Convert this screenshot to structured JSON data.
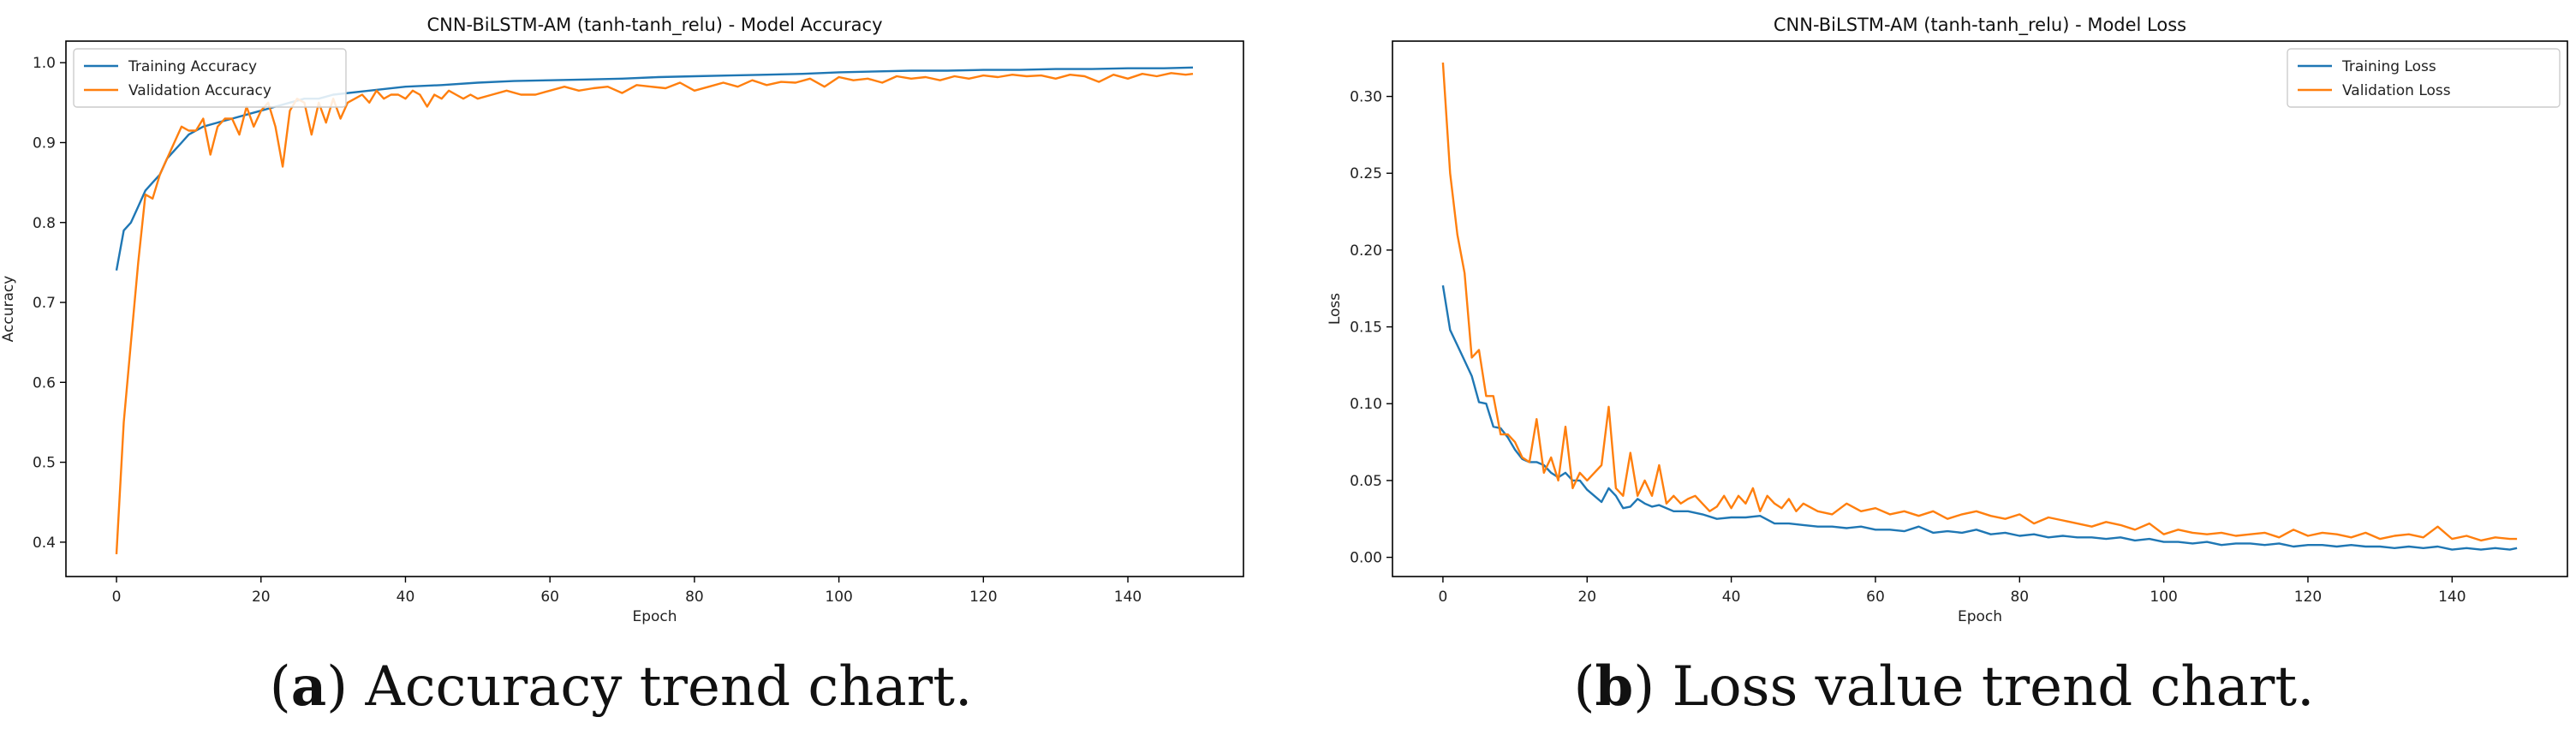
{
  "figure": {
    "panels": [
      {
        "letter": "a",
        "caption": "Accuracy trend chart."
      },
      {
        "letter": "b",
        "caption": "Loss value trend chart."
      }
    ]
  },
  "colors": {
    "training": "#1f77b4",
    "validation": "#ff7f0e"
  },
  "chart_data": [
    {
      "type": "line",
      "title": "CNN-BiLSTM-AM (tanh-tanh_relu) - Model Accuracy",
      "xlabel": "Epoch",
      "ylabel": "Accuracy",
      "xlim": [
        -7,
        156
      ],
      "ylim": [
        0.357,
        1.027
      ],
      "xticks": [
        0,
        20,
        40,
        60,
        80,
        100,
        120,
        140
      ],
      "xtick_labels": [
        "0",
        "20",
        "40",
        "60",
        "80",
        "100",
        "120",
        "140"
      ],
      "yticks": [
        0.4,
        0.5,
        0.6,
        0.7,
        0.8,
        0.9,
        1.0
      ],
      "ytick_labels": [
        "0.4",
        "0.5",
        "0.6",
        "0.7",
        "0.8",
        "0.9",
        "1.0"
      ],
      "grid": false,
      "legend_position": "upper left",
      "series": [
        {
          "name": "Training Accuracy",
          "color": "#1f77b4",
          "x": [
            0,
            1,
            2,
            3,
            4,
            5,
            6,
            7,
            8,
            9,
            10,
            12,
            14,
            16,
            18,
            20,
            22,
            24,
            26,
            28,
            30,
            35,
            40,
            45,
            50,
            55,
            60,
            65,
            70,
            75,
            80,
            85,
            90,
            95,
            100,
            105,
            110,
            115,
            120,
            125,
            130,
            135,
            140,
            145,
            149
          ],
          "y": [
            0.74,
            0.79,
            0.8,
            0.82,
            0.84,
            0.85,
            0.86,
            0.88,
            0.89,
            0.9,
            0.91,
            0.92,
            0.925,
            0.93,
            0.935,
            0.94,
            0.945,
            0.95,
            0.955,
            0.955,
            0.96,
            0.965,
            0.97,
            0.972,
            0.975,
            0.977,
            0.978,
            0.979,
            0.98,
            0.982,
            0.983,
            0.984,
            0.985,
            0.986,
            0.988,
            0.989,
            0.99,
            0.99,
            0.991,
            0.991,
            0.992,
            0.992,
            0.993,
            0.993,
            0.994
          ]
        },
        {
          "name": "Validation Accuracy",
          "color": "#ff7f0e",
          "x": [
            0,
            1,
            2,
            3,
            4,
            5,
            6,
            7,
            8,
            9,
            10,
            11,
            12,
            13,
            14,
            15,
            16,
            17,
            18,
            19,
            20,
            21,
            22,
            23,
            24,
            25,
            26,
            27,
            28,
            29,
            30,
            31,
            32,
            33,
            34,
            35,
            36,
            37,
            38,
            39,
            40,
            41,
            42,
            43,
            44,
            45,
            46,
            47,
            48,
            49,
            50,
            52,
            54,
            56,
            58,
            60,
            62,
            64,
            66,
            68,
            70,
            72,
            74,
            76,
            78,
            80,
            82,
            84,
            86,
            88,
            90,
            92,
            94,
            96,
            98,
            100,
            102,
            104,
            106,
            108,
            110,
            112,
            114,
            116,
            118,
            120,
            122,
            124,
            126,
            128,
            130,
            132,
            134,
            136,
            138,
            140,
            142,
            144,
            146,
            148,
            149
          ],
          "y": [
            0.385,
            0.55,
            0.65,
            0.75,
            0.835,
            0.83,
            0.86,
            0.88,
            0.9,
            0.92,
            0.915,
            0.915,
            0.93,
            0.885,
            0.92,
            0.93,
            0.93,
            0.91,
            0.945,
            0.92,
            0.94,
            0.95,
            0.92,
            0.87,
            0.94,
            0.955,
            0.95,
            0.91,
            0.95,
            0.925,
            0.955,
            0.93,
            0.95,
            0.955,
            0.96,
            0.95,
            0.965,
            0.955,
            0.96,
            0.96,
            0.955,
            0.965,
            0.96,
            0.945,
            0.96,
            0.955,
            0.965,
            0.96,
            0.955,
            0.96,
            0.955,
            0.96,
            0.965,
            0.96,
            0.96,
            0.965,
            0.97,
            0.965,
            0.968,
            0.97,
            0.962,
            0.972,
            0.97,
            0.968,
            0.975,
            0.965,
            0.97,
            0.975,
            0.97,
            0.978,
            0.972,
            0.976,
            0.975,
            0.98,
            0.97,
            0.982,
            0.978,
            0.98,
            0.975,
            0.983,
            0.98,
            0.982,
            0.978,
            0.983,
            0.98,
            0.984,
            0.982,
            0.985,
            0.983,
            0.984,
            0.98,
            0.985,
            0.983,
            0.976,
            0.985,
            0.98,
            0.986,
            0.983,
            0.987,
            0.985,
            0.986
          ]
        }
      ]
    },
    {
      "type": "line",
      "title": "CNN-BiLSTM-AM (tanh-tanh_relu) - Model Loss",
      "xlabel": "Epoch",
      "ylabel": "Loss",
      "xlim": [
        -7,
        156
      ],
      "ylim": [
        -0.0125,
        0.336
      ],
      "xticks": [
        0,
        20,
        40,
        60,
        80,
        100,
        120,
        140
      ],
      "xtick_labels": [
        "0",
        "20",
        "40",
        "60",
        "80",
        "100",
        "120",
        "140"
      ],
      "yticks": [
        0.0,
        0.05,
        0.1,
        0.15,
        0.2,
        0.25,
        0.3
      ],
      "ytick_labels": [
        "0.00",
        "0.05",
        "0.10",
        "0.15",
        "0.20",
        "0.25",
        "0.30"
      ],
      "grid": false,
      "legend_position": "upper right",
      "series": [
        {
          "name": "Training Loss",
          "color": "#1f77b4",
          "x": [
            0,
            1,
            2,
            3,
            4,
            5,
            6,
            7,
            8,
            9,
            10,
            11,
            12,
            13,
            14,
            15,
            16,
            17,
            18,
            19,
            20,
            21,
            22,
            23,
            24,
            25,
            26,
            27,
            28,
            29,
            30,
            32,
            34,
            36,
            38,
            40,
            42,
            44,
            46,
            48,
            50,
            52,
            54,
            56,
            58,
            60,
            62,
            64,
            66,
            68,
            70,
            72,
            74,
            76,
            78,
            80,
            82,
            84,
            86,
            88,
            90,
            92,
            94,
            96,
            98,
            100,
            102,
            104,
            106,
            108,
            110,
            112,
            114,
            116,
            118,
            120,
            122,
            124,
            126,
            128,
            130,
            132,
            134,
            136,
            138,
            140,
            142,
            144,
            146,
            148,
            149
          ],
          "y": [
            0.177,
            0.148,
            0.138,
            0.128,
            0.118,
            0.101,
            0.1,
            0.085,
            0.084,
            0.078,
            0.07,
            0.064,
            0.062,
            0.062,
            0.06,
            0.055,
            0.052,
            0.055,
            0.05,
            0.05,
            0.044,
            0.04,
            0.036,
            0.045,
            0.04,
            0.032,
            0.033,
            0.038,
            0.035,
            0.033,
            0.034,
            0.03,
            0.03,
            0.028,
            0.025,
            0.026,
            0.026,
            0.027,
            0.022,
            0.022,
            0.021,
            0.02,
            0.02,
            0.019,
            0.02,
            0.018,
            0.018,
            0.017,
            0.02,
            0.016,
            0.017,
            0.016,
            0.018,
            0.015,
            0.016,
            0.014,
            0.015,
            0.013,
            0.014,
            0.013,
            0.013,
            0.012,
            0.013,
            0.011,
            0.012,
            0.01,
            0.01,
            0.009,
            0.01,
            0.008,
            0.009,
            0.009,
            0.008,
            0.009,
            0.007,
            0.008,
            0.008,
            0.007,
            0.008,
            0.007,
            0.007,
            0.006,
            0.007,
            0.006,
            0.007,
            0.005,
            0.006,
            0.005,
            0.006,
            0.005,
            0.006
          ]
        },
        {
          "name": "Validation Loss",
          "color": "#ff7f0e",
          "x": [
            0,
            1,
            2,
            3,
            4,
            5,
            6,
            7,
            8,
            9,
            10,
            11,
            12,
            13,
            14,
            15,
            16,
            17,
            18,
            19,
            20,
            21,
            22,
            23,
            24,
            25,
            26,
            27,
            28,
            29,
            30,
            31,
            32,
            33,
            34,
            35,
            36,
            37,
            38,
            39,
            40,
            41,
            42,
            43,
            44,
            45,
            46,
            47,
            48,
            49,
            50,
            52,
            54,
            56,
            58,
            60,
            62,
            64,
            66,
            68,
            70,
            72,
            74,
            76,
            78,
            80,
            82,
            84,
            86,
            88,
            90,
            92,
            94,
            96,
            98,
            100,
            102,
            104,
            106,
            108,
            110,
            112,
            114,
            116,
            118,
            120,
            122,
            124,
            126,
            128,
            130,
            132,
            134,
            136,
            138,
            140,
            142,
            144,
            146,
            148,
            149
          ],
          "y": [
            0.322,
            0.25,
            0.21,
            0.185,
            0.13,
            0.135,
            0.105,
            0.105,
            0.08,
            0.08,
            0.075,
            0.065,
            0.062,
            0.09,
            0.055,
            0.065,
            0.05,
            0.085,
            0.045,
            0.055,
            0.05,
            0.055,
            0.06,
            0.098,
            0.045,
            0.04,
            0.068,
            0.04,
            0.05,
            0.04,
            0.06,
            0.035,
            0.04,
            0.035,
            0.038,
            0.04,
            0.035,
            0.03,
            0.033,
            0.04,
            0.032,
            0.04,
            0.035,
            0.045,
            0.03,
            0.04,
            0.035,
            0.032,
            0.038,
            0.03,
            0.035,
            0.03,
            0.028,
            0.035,
            0.03,
            0.032,
            0.028,
            0.03,
            0.027,
            0.03,
            0.025,
            0.028,
            0.03,
            0.027,
            0.025,
            0.028,
            0.022,
            0.026,
            0.024,
            0.022,
            0.02,
            0.023,
            0.021,
            0.018,
            0.022,
            0.015,
            0.018,
            0.016,
            0.015,
            0.016,
            0.014,
            0.015,
            0.016,
            0.013,
            0.018,
            0.014,
            0.016,
            0.015,
            0.013,
            0.016,
            0.012,
            0.014,
            0.015,
            0.013,
            0.02,
            0.012,
            0.014,
            0.011,
            0.013,
            0.012,
            0.012
          ]
        }
      ]
    }
  ]
}
